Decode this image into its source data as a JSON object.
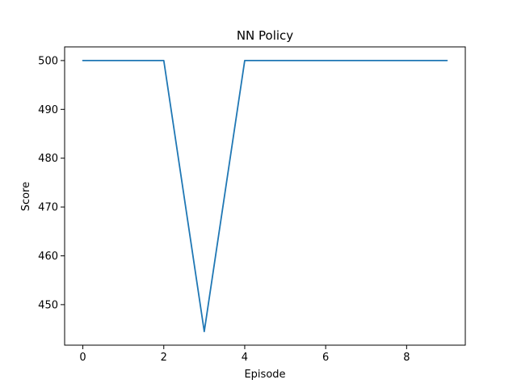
{
  "chart_data": {
    "type": "line",
    "title": "NN Policy",
    "xlabel": "Episode",
    "ylabel": "Score",
    "x": [
      0,
      1,
      2,
      3,
      4,
      5,
      6,
      7,
      8,
      9
    ],
    "series": [
      {
        "values": [
          500,
          500,
          500,
          444.5,
          500,
          500,
          500,
          500,
          500,
          500
        ],
        "color": "#1f77b4"
      }
    ],
    "xlim": [
      -0.45,
      9.45
    ],
    "ylim": [
      441.7,
      502.8
    ],
    "xticks": [
      0,
      2,
      4,
      6,
      8
    ],
    "yticks": [
      450,
      460,
      470,
      480,
      490,
      500
    ],
    "grid": false,
    "legend": "none"
  }
}
